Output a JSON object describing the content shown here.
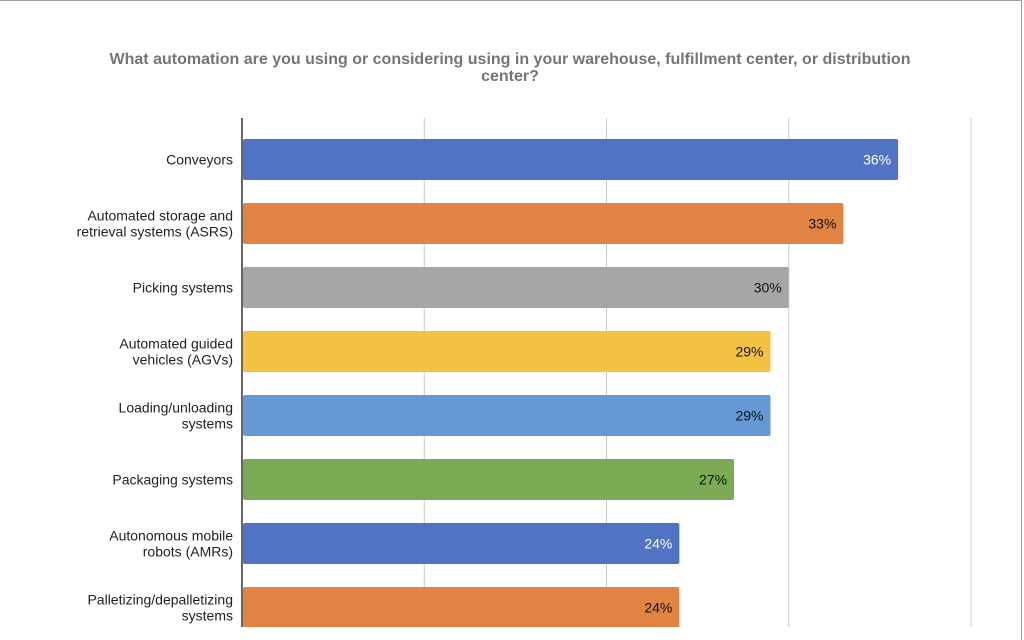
{
  "chart_data": {
    "type": "bar",
    "orientation": "horizontal",
    "title_lines": [
      "What automation are you using or considering using in your warehouse, fulfillment center, or distribution",
      "center?"
    ],
    "categories": [
      [
        "Conveyors"
      ],
      [
        "Automated storage and",
        "retrieval systems (ASRS)"
      ],
      [
        "Picking systems"
      ],
      [
        "Automated guided",
        "vehicles (AGVs)"
      ],
      [
        "Loading/unloading",
        "systems"
      ],
      [
        "Packaging systems"
      ],
      [
        "Autonomous mobile",
        "robots (AMRs)"
      ],
      [
        "Palletizing/depalletizing",
        "systems"
      ]
    ],
    "values": [
      36,
      33,
      30,
      29,
      29,
      27,
      24,
      24
    ],
    "value_labels": [
      "36%",
      "33%",
      "30%",
      "29%",
      "29%",
      "27%",
      "24%",
      "24%"
    ],
    "xlim": [
      0,
      40
    ],
    "grid": true,
    "colors": [
      "#5173c4",
      "#e08343",
      "#a6a6a6",
      "#f4c242",
      "#6699d3",
      "#7caa55",
      "#5173c4",
      "#e08343"
    ],
    "label_colors": [
      "#ffffff",
      "#111111",
      "#111111",
      "#111111",
      "#111111",
      "#111111",
      "#ffffff",
      "#111111"
    ]
  }
}
